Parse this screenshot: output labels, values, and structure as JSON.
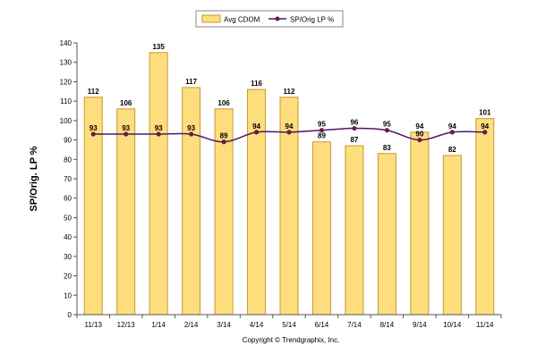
{
  "chart_data": {
    "type": "bar",
    "categories": [
      "11/13",
      "12/13",
      "1/14",
      "2/14",
      "3/14",
      "4/14",
      "5/14",
      "6/14",
      "7/14",
      "8/14",
      "9/14",
      "10/14",
      "11/14"
    ],
    "series": [
      {
        "name": "Avg CDOM",
        "kind": "bar",
        "values": [
          112,
          106,
          135,
          117,
          106,
          116,
          112,
          89,
          87,
          83,
          94,
          82,
          101
        ]
      },
      {
        "name": "SP/Orig LP %",
        "kind": "line",
        "values": [
          93,
          93,
          93,
          93,
          89,
          94,
          94,
          95,
          96,
          95,
          90,
          94,
          94
        ]
      }
    ],
    "title": "",
    "xlabel": "",
    "ylabel": "SP/Orig. LP %",
    "ylim": [
      0,
      140
    ],
    "ytick_step": 10,
    "grid": false,
    "legend_position": "top-center",
    "colors": {
      "bar_fill": "#FEDD7D",
      "bar_stroke": "#C49A2C",
      "line": "#4C1670",
      "marker": "#6C1A3F",
      "axis": "#555555"
    }
  },
  "footer": {
    "copyright": "Copyright © Trendgraphix, Inc."
  }
}
